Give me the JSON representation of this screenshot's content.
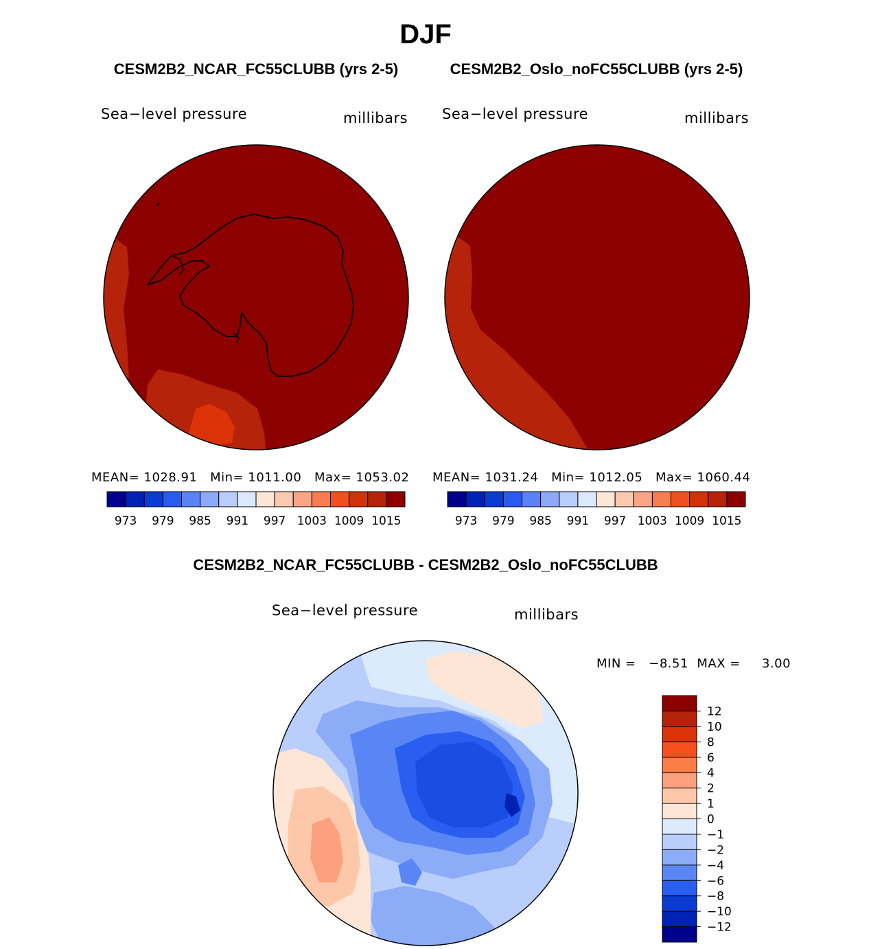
{
  "figure": {
    "season": "DJF",
    "panel_left_title": "CESM2B2_NCAR_FC55CLUBB (yrs 2-5)",
    "panel_right_title": "CESM2B2_Oslo_noFC55CLUBB (yrs 2-5)",
    "diff_title": "CESM2B2_NCAR_FC55CLUBB - CESM2B2_Oslo_noFC55CLUBB"
  },
  "panels": {
    "left": {
      "variable": "Sea−level pressure",
      "units": "millibars",
      "stats": {
        "mean_label": "MEAN=",
        "mean": "1028.91",
        "min_label": "Min=",
        "min": "1011.00",
        "max_label": "Max=",
        "max": "1053.02"
      }
    },
    "right": {
      "variable": "Sea−level pressure",
      "units": "millibars",
      "stats": {
        "mean_label": "MEAN=",
        "mean": "1031.24",
        "min_label": "Min=",
        "min": "1012.05",
        "max_label": "Max=",
        "max": "1060.44"
      }
    },
    "diff": {
      "variable": "Sea−level pressure",
      "units": "millibars",
      "minmax_text": "MIN =   −8.51  MAX =     3.00"
    }
  },
  "colorbar_horizontal": {
    "colors": [
      "#00008c",
      "#0022b4",
      "#0a3cd2",
      "#2a5af0",
      "#5a82f5",
      "#8caaf8",
      "#b9cdfb",
      "#dce8fd",
      "#fde6d6",
      "#fbc8b0",
      "#f8a585",
      "#f67d50",
      "#f05020",
      "#d23208",
      "#b4230a",
      "#8c0000"
    ],
    "tick_labels": [
      "973",
      "979",
      "985",
      "991",
      "997",
      "1003",
      "1009",
      "1015"
    ]
  },
  "colorbar_vertical": {
    "colors_top_to_bottom": [
      "#8c0000",
      "#b4230a",
      "#dc3208",
      "#f5501e",
      "#fa7d46",
      "#fca07e",
      "#fdc8aa",
      "#fee6d6",
      "#dceafd",
      "#b9cefb",
      "#8cacf8",
      "#5a86f5",
      "#2a5ef0",
      "#0a3cd2",
      "#0022b4",
      "#00008c"
    ],
    "tick_labels": [
      "12",
      "10",
      "8",
      "6",
      "4",
      "2",
      "1",
      "0",
      "−1",
      "−2",
      "−4",
      "−6",
      "−8",
      "−10",
      "−12"
    ]
  }
}
